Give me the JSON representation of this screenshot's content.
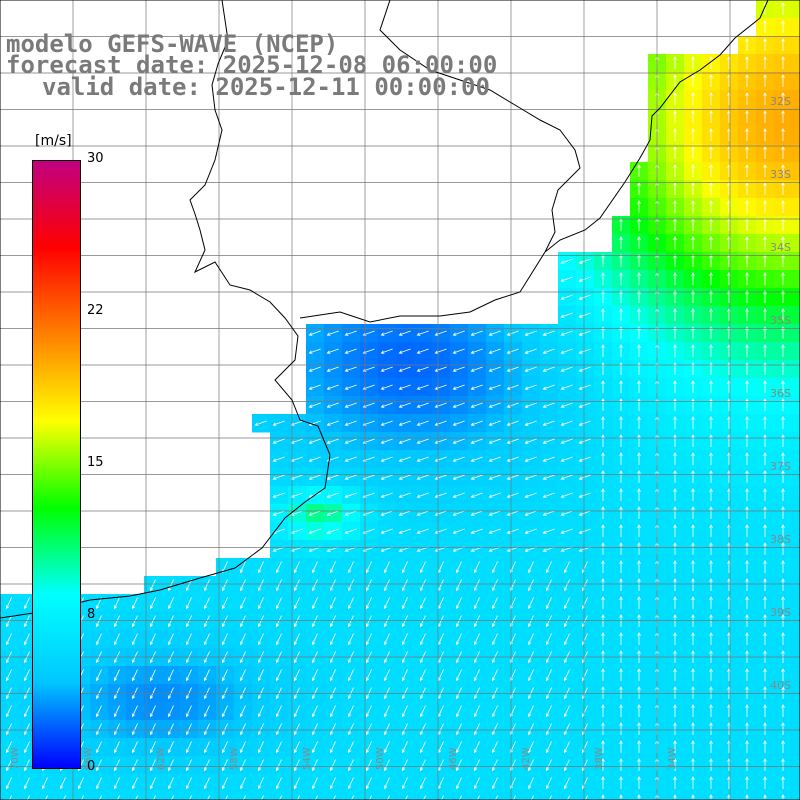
{
  "title": {
    "line1": "modelo GEFS-WAVE (NCEP)",
    "line2": "forecast date: 2025-12-08 06:00:00",
    "line3": "valid date: 2025-12-11 00:00:00"
  },
  "colorbar": {
    "unit": "[m/s]",
    "ticks": [
      "30",
      "22",
      "15",
      "8",
      "0"
    ],
    "range": [
      0,
      30
    ],
    "colors": [
      "#0000ff",
      "#00c8ff",
      "#00ffff",
      "#00ff00",
      "#ffff00",
      "#ff8000",
      "#ff0000",
      "#c00080"
    ]
  },
  "map": {
    "background": "#ffffff",
    "grid_color": "#777777",
    "coast_color": "#000000",
    "right_lat_labels": [
      "32S",
      "33S",
      "34S",
      "35S",
      "36S",
      "37S",
      "38S",
      "39S",
      "40S"
    ],
    "bottom_lon_labels": [
      "70W",
      "66W",
      "62W",
      "58W",
      "54W",
      "50W",
      "46W",
      "42W",
      "38W",
      "34W"
    ],
    "field": "wind speed with direction arrows",
    "legend_arrow_color": "#ffffff"
  }
}
